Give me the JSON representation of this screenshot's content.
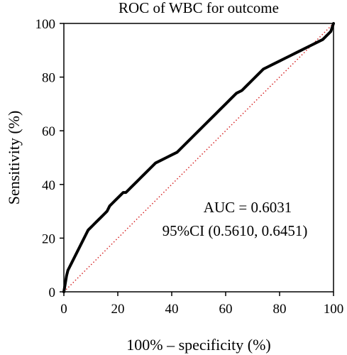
{
  "chart_data": {
    "type": "line",
    "title": "ROC of WBC for outcome",
    "xlabel": "100% – specificity (%)",
    "ylabel": "Sensitivity (%)",
    "xlim": [
      0,
      100
    ],
    "ylim": [
      0,
      100
    ],
    "xticks": [
      0,
      20,
      40,
      60,
      80,
      100
    ],
    "yticks": [
      0,
      20,
      40,
      60,
      80,
      100
    ],
    "grid": false,
    "legend": "none",
    "annotations": [
      "AUC = 0.6031",
      "95%CI (0.5610, 0.6451)"
    ],
    "reference_line": {
      "x": [
        0,
        100
      ],
      "y": [
        0,
        100
      ],
      "color": "#d62728",
      "style": "dotted"
    },
    "series": [
      {
        "color": "#000000",
        "x": [
          0,
          0.5,
          1,
          1.5,
          2,
          3,
          4,
          5,
          6,
          7,
          8,
          9,
          10,
          11,
          12,
          13,
          14,
          15,
          16,
          17,
          18,
          19,
          20,
          21,
          22,
          23,
          24,
          25,
          26,
          27,
          28,
          29,
          30,
          32,
          34,
          36,
          38,
          40,
          42,
          44,
          46,
          48,
          50,
          52,
          54,
          56,
          58,
          60,
          62,
          64,
          66,
          68,
          70,
          72,
          74,
          76,
          78,
          80,
          82,
          84,
          86,
          88,
          90,
          92,
          94,
          96,
          98,
          99,
          100
        ],
        "y": [
          0,
          3,
          6,
          8,
          9,
          11,
          13,
          15,
          17,
          19,
          21,
          23,
          24,
          25,
          26,
          27,
          28,
          29,
          30,
          32,
          33,
          34,
          35,
          36,
          37,
          37,
          38,
          39,
          40,
          41,
          42,
          43,
          44,
          46,
          48,
          49,
          50,
          51,
          52,
          54,
          56,
          58,
          60,
          62,
          64,
          66,
          68,
          70,
          72,
          74,
          75,
          77,
          79,
          81,
          83,
          84,
          85,
          86,
          87,
          88,
          89,
          90,
          91,
          92,
          93,
          94,
          96,
          97,
          100
        ]
      }
    ]
  }
}
